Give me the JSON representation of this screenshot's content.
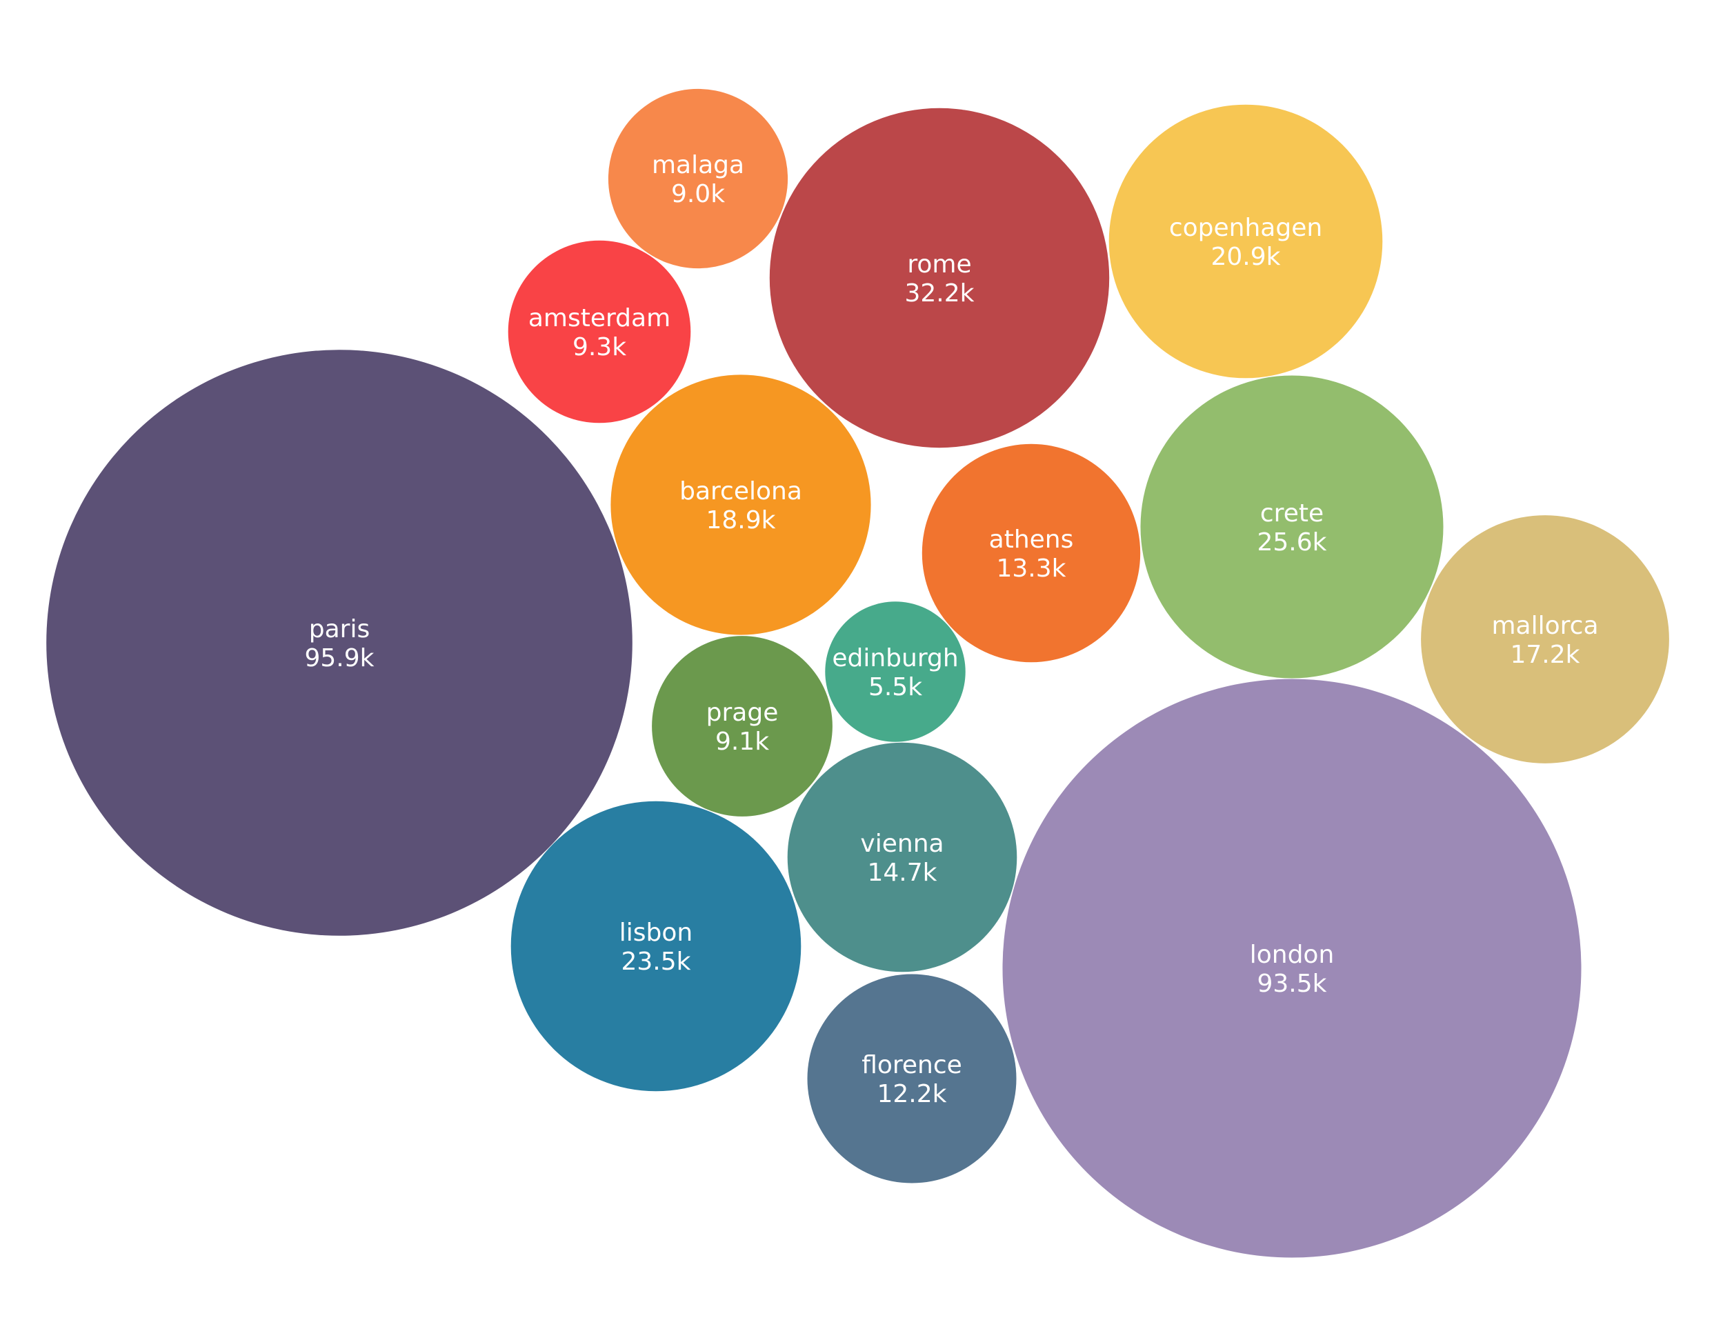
{
  "chart_data": {
    "type": "bubble",
    "title": "",
    "items": [
      {
        "label": "paris",
        "value": 95.9,
        "display": "95.9k",
        "color": "#5c5176"
      },
      {
        "label": "london",
        "value": 93.5,
        "display": "93.5k",
        "color": "#9c8ab6"
      },
      {
        "label": "rome",
        "value": 32.2,
        "display": "32.2k",
        "color": "#bb4749"
      },
      {
        "label": "crete",
        "value": 25.6,
        "display": "25.6k",
        "color": "#93bd6d"
      },
      {
        "label": "lisbon",
        "value": 23.5,
        "display": "23.5k",
        "color": "#287ea2"
      },
      {
        "label": "copenhagen",
        "value": 20.9,
        "display": "20.9k",
        "color": "#f7c653"
      },
      {
        "label": "barcelona",
        "value": 18.9,
        "display": "18.9k",
        "color": "#f69722"
      },
      {
        "label": "mallorca",
        "value": 17.2,
        "display": "17.2k",
        "color": "#d9bf7a"
      },
      {
        "label": "vienna",
        "value": 14.7,
        "display": "14.7k",
        "color": "#4e8f8c"
      },
      {
        "label": "athens",
        "value": 13.3,
        "display": "13.3k",
        "color": "#f1742f"
      },
      {
        "label": "florence",
        "value": 12.2,
        "display": "12.2k",
        "color": "#557590"
      },
      {
        "label": "amsterdam",
        "value": 9.3,
        "display": "9.3k",
        "color": "#f94346"
      },
      {
        "label": "prage",
        "value": 9.1,
        "display": "9.1k",
        "color": "#6b994d"
      },
      {
        "label": "malaga",
        "value": 9.0,
        "display": "9.0k",
        "color": "#f7884b"
      },
      {
        "label": "edinburgh",
        "value": 5.5,
        "display": "5.5k",
        "color": "#47aa8b"
      }
    ]
  }
}
